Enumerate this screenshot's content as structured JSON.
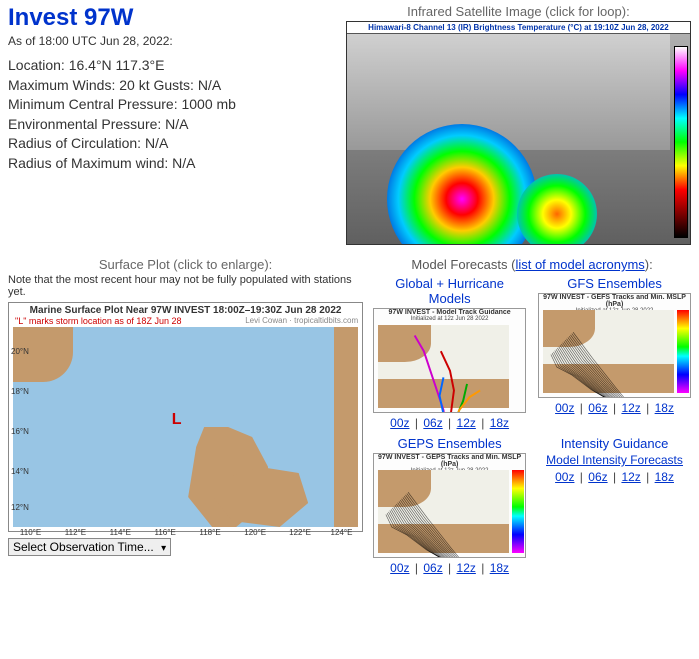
{
  "header": {
    "title": "Invest 97W",
    "asof": "As of 18:00 UTC Jun 28, 2022:",
    "info": [
      "Location: 16.4°N 117.3°E",
      "Maximum Winds: 20 kt  Gusts: N/A",
      "Minimum Central Pressure: 1000 mb",
      "Environmental Pressure: N/A",
      "Radius of Circulation: N/A",
      "Radius of Maximum wind: N/A"
    ]
  },
  "satellite": {
    "label": "Infrared Satellite Image (click for loop):",
    "strip": "Himawari-8 Channel 13 (IR) Brightness Temperature (°C) at 19:10Z Jun 28, 2022"
  },
  "surface": {
    "label": "Surface Plot (click to enlarge):",
    "note": "Note that the most recent hour may not be fully populated with stations yet.",
    "plot_title": "Marine Surface Plot Near 97W INVEST 18:00Z–19:30Z Jun 28 2022",
    "plot_sub": "\"L\" marks storm location as of 18Z Jun 28",
    "credit": "Levi Cowan · tropicaltidbits.com",
    "L": "L",
    "lat_ticks": [
      "20°N",
      "18°N",
      "16°N",
      "14°N",
      "12°N"
    ],
    "lon_ticks": [
      "110°E",
      "112°E",
      "114°E",
      "116°E",
      "118°E",
      "120°E",
      "122°E",
      "124°E"
    ],
    "select_label": "Select Observation Time..."
  },
  "models": {
    "header_prefix": "Model Forecasts (",
    "header_link": "list of model acronyms",
    "header_suffix": "):",
    "run_labels": [
      "00z",
      "06z",
      "12z",
      "18z"
    ],
    "blocks": [
      {
        "title": "Global + Hurricane Models",
        "thumb_title": "97W INVEST - Model Track Guidance",
        "thumb_sub": "Initialized at 12z Jun 28 2022",
        "has_cbar": false,
        "track_style": "multi"
      },
      {
        "title": "GFS Ensembles",
        "thumb_title": "97W INVEST - GEFS Tracks and Min. MSLP (hPa)",
        "thumb_sub": "Initialized at 12z Jun 28 2022",
        "has_cbar": true,
        "track_style": "spaghetti"
      },
      {
        "title": "GEPS Ensembles",
        "thumb_title": "97W INVEST - GEPS Tracks and Min. MSLP (hPa)",
        "thumb_sub": "Initialized at 12z Jun 28 2022",
        "has_cbar": true,
        "track_style": "spaghetti"
      }
    ],
    "intensity": {
      "title": "Intensity Guidance",
      "link": "Model Intensity Forecasts"
    }
  },
  "colors": {
    "title": "#0033cc",
    "link": "#0033cc",
    "sea": "#98c5e4",
    "land": "#c49a6c",
    "red": "#cc0000"
  }
}
